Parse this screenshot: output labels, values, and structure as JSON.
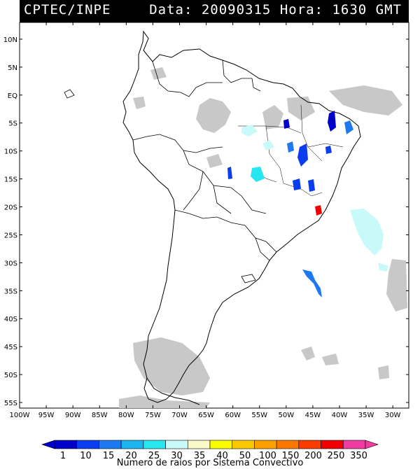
{
  "header": {
    "agency": "CPTEC/INPE",
    "date_label": "Data:",
    "date": "20090315",
    "time_label": "Hora:",
    "time": "1630 GMT"
  },
  "map": {
    "lat_labels": [
      "10N",
      "5N",
      "EQ",
      "5S",
      "10S",
      "15S",
      "20S",
      "25S",
      "30S",
      "35S",
      "40S",
      "45S",
      "50S",
      "55S"
    ],
    "lon_labels": [
      "100W",
      "95W",
      "90W",
      "85W",
      "80W",
      "75W",
      "70W",
      "65W",
      "60W",
      "55W",
      "50W",
      "45W",
      "40W",
      "35W",
      "30W"
    ],
    "extent": {
      "lon": [
        -100,
        -27
      ],
      "lat": [
        -56,
        13
      ]
    }
  },
  "legend": {
    "title": "Numero de raios por Sistema Convectivo",
    "labels": [
      "1",
      "10",
      "15",
      "20",
      "25",
      "30",
      "35",
      "40",
      "50",
      "100",
      "150",
      "200",
      "250",
      "350"
    ],
    "colors": [
      "#0000c8",
      "#0a3cf0",
      "#1e78f0",
      "#1eb4f0",
      "#28e6f0",
      "#c8fafa",
      "#fafac8",
      "#fafa00",
      "#fac800",
      "#faa000",
      "#fa7800",
      "#fa3c00",
      "#f00000",
      "#f03ca0"
    ]
  },
  "systems": [
    {
      "color": "#0000c8",
      "intensity": 1
    },
    {
      "color": "#1e78f0",
      "intensity": 15
    },
    {
      "color": "#28e6f0",
      "intensity": 25
    },
    {
      "color": "#c8fafa",
      "intensity": 30
    },
    {
      "color": "#f00000",
      "intensity": 250
    }
  ]
}
